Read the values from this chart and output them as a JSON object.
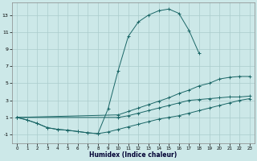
{
  "xlabel": "Humidex (Indice chaleur)",
  "background_color": "#cce8e8",
  "line_color": "#1a6666",
  "grid_color": "#aacccc",
  "xlim": [
    -0.5,
    23.5
  ],
  "ylim": [
    -2.0,
    14.5
  ],
  "xticks": [
    0,
    1,
    2,
    3,
    4,
    5,
    6,
    7,
    8,
    9,
    10,
    11,
    12,
    13,
    14,
    15,
    16,
    17,
    18,
    19,
    20,
    21,
    22,
    23
  ],
  "yticks": [
    -1,
    1,
    3,
    5,
    7,
    9,
    11,
    13
  ],
  "s1_x": [
    0,
    1,
    2,
    3,
    4,
    5,
    6,
    7,
    8,
    9,
    10,
    11,
    12,
    13,
    14,
    15,
    16,
    17,
    18
  ],
  "s1_y": [
    1.0,
    0.7,
    0.3,
    -0.2,
    -0.4,
    -0.5,
    -0.65,
    -0.8,
    -0.9,
    2.0,
    6.5,
    10.5,
    12.2,
    13.0,
    13.5,
    13.7,
    13.2,
    11.2,
    8.5
  ],
  "s2_x": [
    0,
    10,
    11,
    12,
    13,
    14,
    15,
    16,
    17,
    18,
    19,
    20,
    21,
    22,
    23
  ],
  "s2_y": [
    1.0,
    1.3,
    1.7,
    2.1,
    2.5,
    2.9,
    3.3,
    3.8,
    4.2,
    4.7,
    5.0,
    5.5,
    5.7,
    5.8,
    5.8
  ],
  "s3_x": [
    0,
    10,
    11,
    12,
    13,
    14,
    15,
    16,
    17,
    18,
    19,
    20,
    21,
    22,
    23
  ],
  "s3_y": [
    1.0,
    1.0,
    1.2,
    1.5,
    1.8,
    2.1,
    2.4,
    2.7,
    3.0,
    3.1,
    3.2,
    3.3,
    3.4,
    3.4,
    3.5
  ],
  "s4_x": [
    0,
    1,
    2,
    3,
    4,
    5,
    6,
    7,
    8,
    9,
    10,
    11,
    12,
    13,
    14,
    15,
    16,
    17,
    18,
    19,
    20,
    21,
    22,
    23
  ],
  "s4_y": [
    1.0,
    0.7,
    0.3,
    -0.2,
    -0.4,
    -0.5,
    -0.65,
    -0.8,
    -0.9,
    -0.7,
    -0.4,
    -0.1,
    0.2,
    0.5,
    0.8,
    1.0,
    1.2,
    1.5,
    1.8,
    2.1,
    2.4,
    2.7,
    3.0,
    3.2
  ]
}
